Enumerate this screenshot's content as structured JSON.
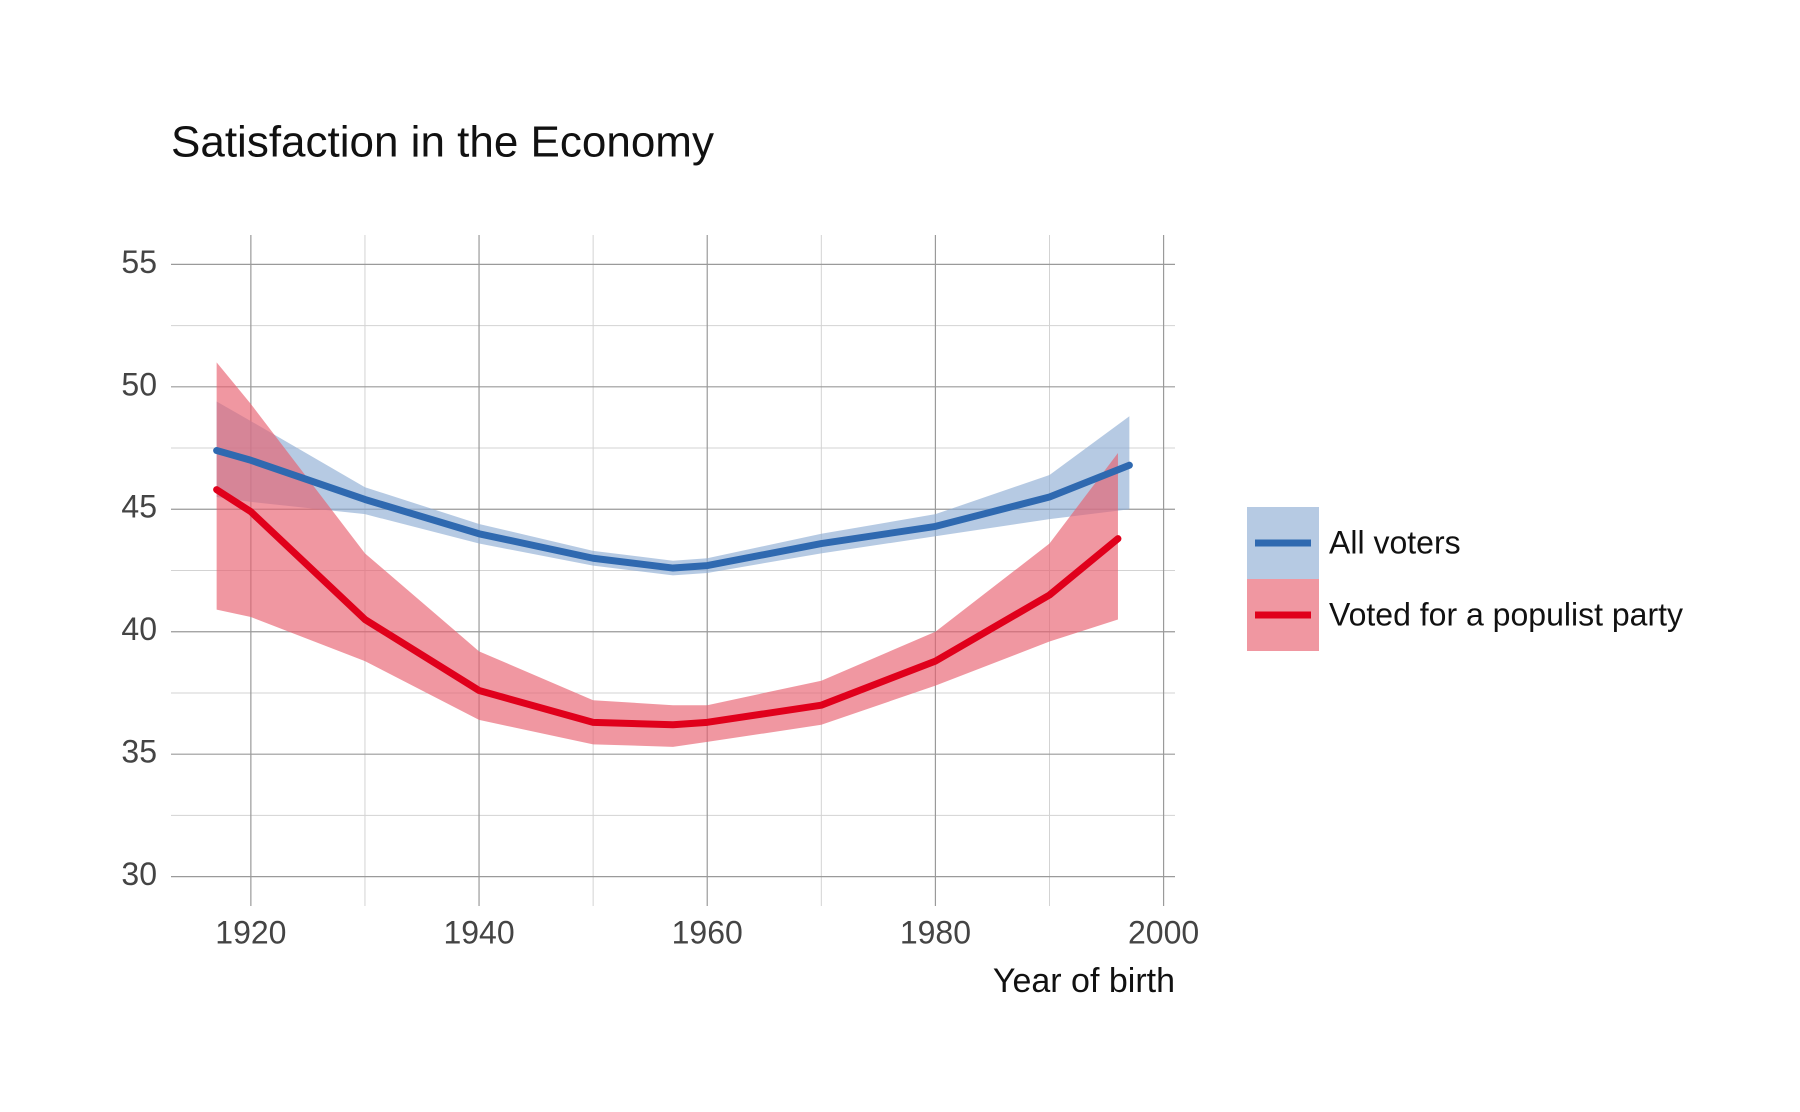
{
  "chart_data": {
    "type": "line",
    "title": "Satisfaction in the Economy",
    "x_label": "Year of birth",
    "xlim": [
      1913,
      2001
    ],
    "ylim": [
      28.8,
      56.2
    ],
    "xticks": [
      1920,
      1940,
      1960,
      1980,
      2000
    ],
    "yticks": [
      30,
      35,
      40,
      45,
      50,
      55
    ],
    "grid": true,
    "legend": "right",
    "series": [
      {
        "name": "All voters",
        "color": "#2f69b0",
        "band_color": "#8fadd4",
        "x": [
          1917,
          1920,
          1930,
          1940,
          1950,
          1957,
          1960,
          1970,
          1980,
          1990,
          1997
        ],
        "values": [
          47.4,
          47.0,
          45.4,
          44.0,
          43.0,
          42.6,
          42.7,
          43.6,
          44.3,
          45.5,
          46.8
        ],
        "upper": [
          49.4,
          48.6,
          45.9,
          44.4,
          43.3,
          42.9,
          43.0,
          44.0,
          44.8,
          46.4,
          48.8
        ],
        "lower": [
          45.5,
          45.3,
          44.8,
          43.6,
          42.7,
          42.3,
          42.4,
          43.2,
          43.9,
          44.6,
          45.0
        ]
      },
      {
        "name": "Voted for a populist party",
        "color": "#e0001b",
        "band_color": "#e8606e",
        "x": [
          1917,
          1920,
          1930,
          1940,
          1950,
          1957,
          1960,
          1970,
          1980,
          1990,
          1996
        ],
        "values": [
          45.8,
          44.9,
          40.5,
          37.6,
          36.3,
          36.2,
          36.3,
          37.0,
          38.8,
          41.5,
          43.8
        ],
        "upper": [
          51.0,
          49.3,
          43.2,
          39.2,
          37.2,
          37.0,
          37.0,
          38.0,
          40.0,
          43.6,
          47.3
        ],
        "lower": [
          40.9,
          40.6,
          38.8,
          36.4,
          35.4,
          35.3,
          35.5,
          36.2,
          37.8,
          39.6,
          40.5
        ]
      }
    ]
  }
}
